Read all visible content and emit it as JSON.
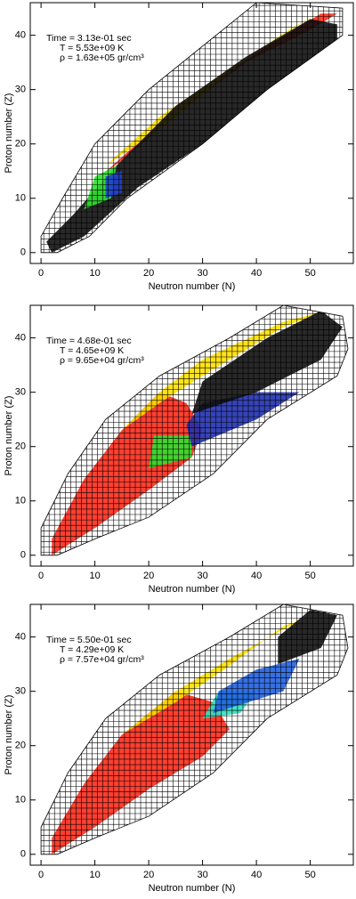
{
  "chart_data": [
    {
      "type": "network",
      "x_label": "Neutron number (N)",
      "y_label": "Proton number (Z)",
      "annotations": [
        "Time = 3.13e-01 sec",
        "T = 5.53e+09 K",
        "ρ = 1.63e+05 gr/cm³"
      ],
      "xlim": [
        -2,
        58
      ],
      "ylim": [
        -2,
        46
      ],
      "xticks": [
        0,
        10,
        20,
        30,
        40,
        50
      ],
      "yticks": [
        0,
        10,
        20,
        30,
        40
      ],
      "network": {
        "n": [
          0,
          3,
          9,
          16,
          30,
          42,
          56,
          56,
          40,
          30,
          20,
          10,
          4,
          0
        ],
        "z": [
          0,
          0,
          3,
          10,
          20,
          30,
          40,
          45,
          46,
          38,
          30,
          20,
          10,
          3
        ]
      },
      "series": [
        {
          "color": "#ff2a1a",
          "n": [
            11,
            20,
            30,
            42,
            52,
            55,
            50,
            38,
            26,
            15
          ],
          "z": [
            14,
            22,
            30,
            38,
            44,
            44,
            41,
            35,
            26,
            17
          ]
        },
        {
          "color": "#ffe000",
          "n": [
            12,
            22,
            34,
            46,
            53,
            48,
            36,
            24
          ],
          "z": [
            16,
            25,
            33,
            41,
            45,
            42,
            34,
            24
          ]
        },
        {
          "color": "#111111",
          "n": [
            2,
            8,
            18,
            30,
            45,
            55,
            55,
            50,
            38,
            25,
            14,
            6,
            1
          ],
          "z": [
            0,
            3,
            12,
            20,
            28,
            37,
            42,
            43,
            36,
            27,
            16,
            7,
            2
          ]
        },
        {
          "color": "#30e030",
          "n": [
            8,
            13,
            14,
            10
          ],
          "z": [
            8,
            10,
            16,
            14
          ]
        },
        {
          "color": "#2040d0",
          "n": [
            12,
            15,
            15,
            12
          ],
          "z": [
            10,
            11,
            15,
            14
          ]
        }
      ]
    },
    {
      "type": "network",
      "x_label": "Neutron number (N)",
      "y_label": "Proton number (Z)",
      "annotations": [
        "Time = 4.68e-01 sec",
        "T = 4.65e+09 K",
        "ρ = 9.65e+04 gr/cm³"
      ],
      "xlim": [
        -2,
        58
      ],
      "ylim": [
        -2,
        46
      ],
      "xticks": [
        0,
        10,
        20,
        30,
        40,
        50
      ],
      "yticks": [
        0,
        10,
        20,
        30,
        40
      ],
      "network": {
        "n": [
          0,
          3,
          10,
          20,
          32,
          42,
          55,
          57,
          56,
          45,
          35,
          22,
          12,
          5,
          0
        ],
        "z": [
          0,
          0,
          3,
          7,
          15,
          25,
          33,
          38,
          44,
          46,
          40,
          33,
          25,
          15,
          5
        ]
      },
      "series": [
        {
          "color": "#ff2a1a",
          "n": [
            2,
            10,
            20,
            28,
            30,
            27,
            22,
            15,
            8,
            2
          ],
          "z": [
            0,
            5,
            12,
            18,
            23,
            28,
            30,
            23,
            14,
            3
          ]
        },
        {
          "color": "#ffe000",
          "n": [
            15,
            22,
            30,
            45,
            53,
            45,
            30,
            22
          ],
          "z": [
            23,
            30,
            36,
            43,
            45,
            42,
            33,
            28
          ]
        },
        {
          "color": "#30e030",
          "n": [
            20,
            28,
            28,
            21
          ],
          "z": [
            16,
            18,
            22,
            22
          ]
        },
        {
          "color": "#2030b0",
          "n": [
            28,
            40,
            48,
            40,
            30,
            27
          ],
          "z": [
            20,
            25,
            30,
            30,
            28,
            24
          ]
        },
        {
          "color": "#111111",
          "n": [
            28,
            40,
            52,
            56,
            52,
            42,
            30
          ],
          "z": [
            26,
            30,
            36,
            42,
            45,
            40,
            32
          ]
        }
      ]
    },
    {
      "type": "network",
      "x_label": "Neutron number (N)",
      "y_label": "Proton number (Z)",
      "annotations": [
        "Time = 5.50e-01 sec",
        "T = 4.29e+09 K",
        "ρ = 7.57e+04 gr/cm³"
      ],
      "xlim": [
        -2,
        58
      ],
      "ylim": [
        -2,
        46
      ],
      "xticks": [
        0,
        10,
        20,
        30,
        40,
        50
      ],
      "yticks": [
        0,
        10,
        20,
        30,
        40
      ],
      "network": {
        "n": [
          0,
          3,
          10,
          20,
          32,
          42,
          55,
          57,
          56,
          45,
          35,
          22,
          12,
          5,
          0
        ],
        "z": [
          0,
          0,
          3,
          7,
          15,
          25,
          33,
          38,
          44,
          46,
          40,
          33,
          25,
          15,
          5
        ]
      },
      "series": [
        {
          "color": "#ff2a1a",
          "n": [
            2,
            10,
            20,
            30,
            35,
            32,
            25,
            15,
            8,
            2
          ],
          "z": [
            0,
            5,
            12,
            18,
            23,
            28,
            30,
            22,
            13,
            3
          ]
        },
        {
          "color": "#ffe000",
          "n": [
            15,
            25,
            35,
            48,
            54,
            45,
            34,
            25
          ],
          "z": [
            22,
            30,
            36,
            43,
            45,
            42,
            34,
            28
          ]
        },
        {
          "color": "#30e0c0",
          "n": [
            30,
            37,
            40,
            33
          ],
          "z": [
            25,
            26,
            30,
            30
          ]
        },
        {
          "color": "#2060e0",
          "n": [
            32,
            45,
            48,
            40,
            33
          ],
          "z": [
            26,
            30,
            36,
            34,
            30
          ]
        },
        {
          "color": "#111111",
          "n": [
            44,
            52,
            55,
            50,
            44
          ],
          "z": [
            35,
            38,
            44,
            45,
            40
          ]
        }
      ]
    }
  ]
}
